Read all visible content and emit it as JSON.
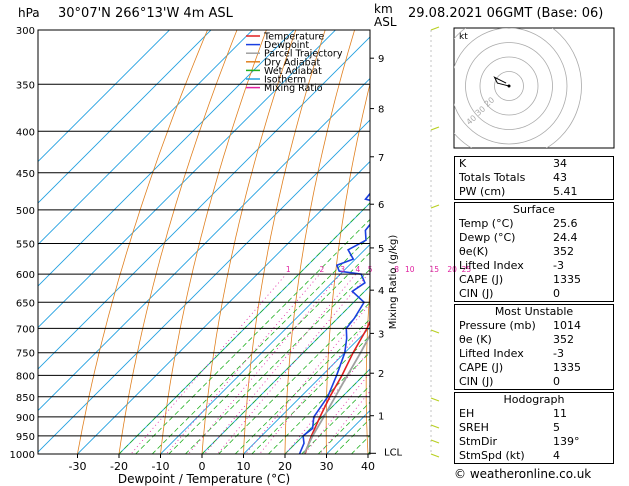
{
  "header": {
    "hpa": "hPa",
    "location": "30°07'N  266°13'W  4m  ASL",
    "km": "km",
    "asl": "ASL",
    "datetime": "29.08.2021  06GMT  (Base: 06)"
  },
  "legend": [
    {
      "label": "Temperature",
      "color": "#e02020"
    },
    {
      "label": "Dewpoint",
      "color": "#1a3fe0"
    },
    {
      "label": "Parcel Trajectory",
      "color": "#a0a0a0"
    },
    {
      "label": "Dry Adiabat",
      "color": "#e08020"
    },
    {
      "label": "Wet Adiabat",
      "color": "#20b020"
    },
    {
      "label": "Isotherm",
      "color": "#20a0e0"
    },
    {
      "label": "Mixing Ratio",
      "color": "#e020a0"
    }
  ],
  "chart_data": {
    "type": "line",
    "title": "",
    "xlabel": "Dewpoint / Temperature (°C)",
    "ylabel": "hPa",
    "xticks": [
      -30,
      -20,
      -10,
      0,
      10,
      20,
      30,
      40
    ],
    "pressure_levels": [
      300,
      350,
      400,
      450,
      500,
      550,
      600,
      650,
      700,
      750,
      800,
      850,
      900,
      950,
      1000
    ],
    "height_km_ticks": [
      {
        "km": "1",
        "p": 897
      },
      {
        "km": "2",
        "p": 795
      },
      {
        "km": "3",
        "p": 710
      },
      {
        "km": "4",
        "p": 628
      },
      {
        "km": "5",
        "p": 557
      },
      {
        "km": "6",
        "p": 492
      },
      {
        "km": "7",
        "p": 430
      },
      {
        "km": "8",
        "p": 375
      },
      {
        "km": "9",
        "p": 325
      }
    ],
    "lcl": {
      "label": "LCL",
      "p": 998
    },
    "mixing_ratio_axis": "Mixing Ratio (g/kg)",
    "mixing_ratio_labels": [
      "1",
      "2",
      "3",
      "4",
      "5",
      "8",
      "10",
      "15",
      "20",
      "25"
    ],
    "mixing_ratio_values": [
      1,
      2,
      3,
      4,
      5,
      8,
      10,
      15,
      20,
      25
    ],
    "series": [
      {
        "name": "Temperature",
        "color": "#e02020",
        "points": [
          [
            1014,
            25.6
          ],
          [
            1000,
            24.8
          ],
          [
            950,
            22.0
          ],
          [
            900,
            19.5
          ],
          [
            850,
            17.0
          ],
          [
            800,
            14.8
          ],
          [
            750,
            12.0
          ],
          [
            700,
            9.5
          ],
          [
            650,
            6.0
          ],
          [
            600,
            2.5
          ],
          [
            550,
            -1.5
          ],
          [
            500,
            -6.5
          ],
          [
            450,
            -11.5
          ],
          [
            400,
            -17.5
          ],
          [
            350,
            -25.0
          ],
          [
            300,
            -33.5
          ]
        ]
      },
      {
        "name": "Dewpoint",
        "color": "#1a3fe0",
        "points": [
          [
            1014,
            24.4
          ],
          [
            1000,
            23.5
          ],
          [
            970,
            22.0
          ],
          [
            950,
            20.0
          ],
          [
            930,
            20.5
          ],
          [
            900,
            18.0
          ],
          [
            850,
            16.5
          ],
          [
            800,
            13.5
          ],
          [
            750,
            10.0
          ],
          [
            720,
            7.0
          ],
          [
            700,
            4.5
          ],
          [
            680,
            4.0
          ],
          [
            650,
            2.5
          ],
          [
            630,
            -3.0
          ],
          [
            615,
            -2.0
          ],
          [
            600,
            -5.0
          ],
          [
            595,
            -11.0
          ],
          [
            585,
            -13.0
          ],
          [
            575,
            -10.5
          ],
          [
            560,
            -14.0
          ],
          [
            545,
            -12.0
          ],
          [
            530,
            -14.5
          ],
          [
            515,
            -15.0
          ],
          [
            505,
            -10.0
          ],
          [
            495,
            -13.0
          ],
          [
            485,
            -22.0
          ],
          [
            470,
            -22.5
          ],
          [
            455,
            -24.0
          ],
          [
            440,
            -25.5
          ],
          [
            430,
            -25.0
          ],
          [
            425,
            -18.0
          ],
          [
            420,
            -31.0
          ],
          [
            410,
            -26.0
          ],
          [
            400,
            -26.5
          ],
          [
            390,
            -26.0
          ],
          [
            375,
            -24.5
          ],
          [
            355,
            -28.0
          ],
          [
            345,
            -27.0
          ],
          [
            335,
            -32.0
          ],
          [
            322,
            -34.5
          ],
          [
            310,
            -37.0
          ],
          [
            300,
            -39.5
          ]
        ]
      },
      {
        "name": "Parcel Trajectory",
        "color": "#a0a0a0",
        "points": [
          [
            1014,
            25.6
          ],
          [
            998,
            24.5
          ],
          [
            950,
            22.3
          ],
          [
            900,
            20.4
          ],
          [
            850,
            18.3
          ],
          [
            800,
            16.1
          ],
          [
            750,
            13.8
          ],
          [
            700,
            11.1
          ],
          [
            650,
            8.3
          ],
          [
            600,
            5.2
          ],
          [
            550,
            1.8
          ],
          [
            500,
            -2.2
          ],
          [
            450,
            -7.0
          ],
          [
            400,
            -13.0
          ],
          [
            350,
            -20.5
          ],
          [
            300,
            -30.0
          ]
        ]
      }
    ]
  },
  "hodograph": {
    "label": "kt",
    "ring_labels": [
      "20",
      "30",
      "40"
    ],
    "trace": [
      [
        0,
        0
      ],
      [
        -4,
        1
      ],
      [
        -8,
        2
      ],
      [
        -10,
        6
      ],
      [
        -6,
        4
      ],
      [
        -2,
        2
      ]
    ]
  },
  "indices": [
    {
      "label": "K",
      "value": "34"
    },
    {
      "label": "Totals Totals",
      "value": "43"
    },
    {
      "label": "PW (cm)",
      "value": "5.41"
    }
  ],
  "surface": {
    "title": "Surface",
    "rows": [
      {
        "label": "Temp (°C)",
        "value": "25.6"
      },
      {
        "label": "Dewp (°C)",
        "value": "24.4"
      },
      {
        "label": "θe(K)",
        "value": "352"
      },
      {
        "label": "Lifted Index",
        "value": "-3"
      },
      {
        "label": "CAPE (J)",
        "value": "1335"
      },
      {
        "label": "CIN (J)",
        "value": "0"
      }
    ]
  },
  "most_unstable": {
    "title": "Most Unstable",
    "rows": [
      {
        "label": "Pressure (mb)",
        "value": "1014"
      },
      {
        "label": "θe (K)",
        "value": "352"
      },
      {
        "label": "Lifted Index",
        "value": "-3"
      },
      {
        "label": "CAPE (J)",
        "value": "1335"
      },
      {
        "label": "CIN (J)",
        "value": "0"
      }
    ]
  },
  "hodo_table": {
    "title": "Hodograph",
    "rows": [
      {
        "label": "EH",
        "value": "11"
      },
      {
        "label": "SREH",
        "value": "5"
      },
      {
        "label": "StmDir",
        "value": "139°"
      },
      {
        "label": "StmSpd (kt)",
        "value": "4"
      }
    ]
  },
  "credit": "© weatheronline.co.uk"
}
